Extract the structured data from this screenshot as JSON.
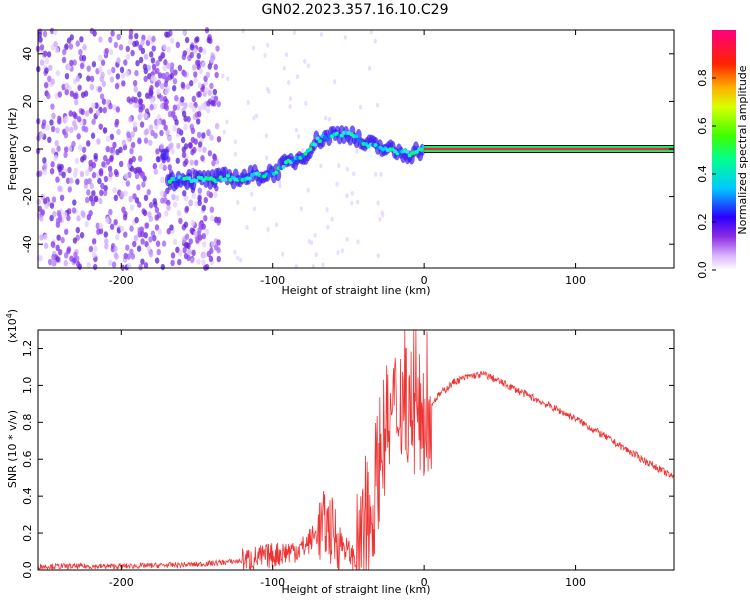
{
  "title": "GN02.2023.357.16.10.C29",
  "chart_data": [
    {
      "type": "heatmap",
      "description_of_axes": "spectrogram",
      "xlabel": "Height of straight line (km)",
      "ylabel": "Frequency (Hz)",
      "xlim": [
        -255,
        165
      ],
      "ylim": [
        -50,
        50
      ],
      "xticks": [
        -200,
        -100,
        0,
        100
      ],
      "yticks": [
        -40,
        -20,
        0,
        20,
        40
      ],
      "ridge": [
        {
          "x": -170,
          "y": -14
        },
        {
          "x": -160,
          "y": -12
        },
        {
          "x": -150,
          "y": -13
        },
        {
          "x": -140,
          "y": -13
        },
        {
          "x": -130,
          "y": -12
        },
        {
          "x": -120,
          "y": -12
        },
        {
          "x": -110,
          "y": -11
        },
        {
          "x": -100,
          "y": -10
        },
        {
          "x": -90,
          "y": -6
        },
        {
          "x": -80,
          "y": -3
        },
        {
          "x": -70,
          "y": 4
        },
        {
          "x": -60,
          "y": 6
        },
        {
          "x": -50,
          "y": 7
        },
        {
          "x": -40,
          "y": 2
        },
        {
          "x": -30,
          "y": 1
        },
        {
          "x": -20,
          "y": -1
        },
        {
          "x": -10,
          "y": -2
        },
        {
          "x": 0,
          "y": 0
        },
        {
          "x": 165,
          "y": 0
        }
      ],
      "colorbar": {
        "label": "Normalized spectral amplitude",
        "range": [
          0.0,
          1.0
        ],
        "ticks": [
          "0.0",
          "0.2",
          "0.4",
          "0.6",
          "0.8"
        ],
        "colormap": "gist_rainbow_r"
      },
      "grid": false
    },
    {
      "type": "line",
      "xlabel": "Height of straight line (km)",
      "ylabel": "SNR (10 * v/v)",
      "yscale_label": "(x10",
      "yscale_exp": "4",
      "yscale_close": ")",
      "xlim": [
        -255,
        165
      ],
      "ylim": [
        0.0,
        1.3
      ],
      "xticks": [
        -200,
        -100,
        0,
        100
      ],
      "yticks": [
        "0.0",
        "0.2",
        "0.4",
        "0.6",
        "0.8",
        "1.0",
        "1.2"
      ],
      "color": "#ee3333",
      "series": [
        {
          "x": [
            -255,
            -200,
            -150,
            -120,
            -100,
            -80,
            -65,
            -55,
            -45,
            -35,
            -28,
            -20,
            -15,
            -10,
            -5,
            0,
            10,
            20,
            30,
            40,
            50,
            60,
            80,
            100,
            120,
            140,
            165
          ],
          "y": [
            0.02,
            0.02,
            0.03,
            0.05,
            0.08,
            0.12,
            0.25,
            0.15,
            0.05,
            0.3,
            0.7,
            0.85,
            0.95,
            0.92,
            0.8,
            0.85,
            0.95,
            1.02,
            1.05,
            1.06,
            1.02,
            0.98,
            0.9,
            0.82,
            0.72,
            0.62,
            0.5
          ]
        }
      ],
      "grid": false
    }
  ]
}
